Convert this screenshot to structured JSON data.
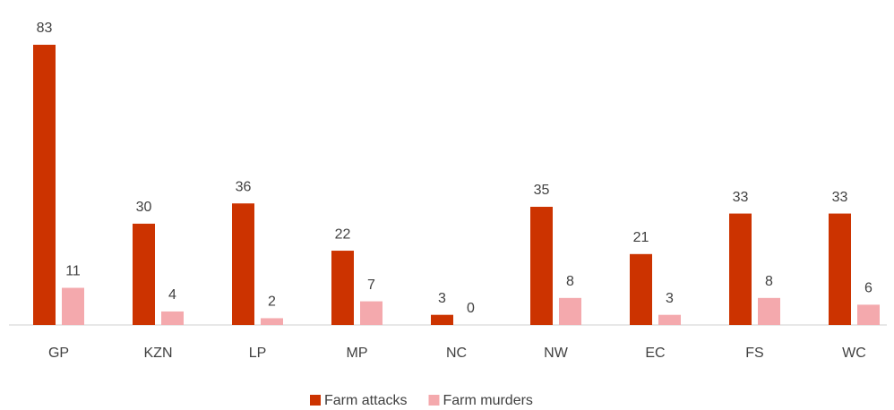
{
  "chart_data": {
    "type": "bar",
    "categories": [
      "GP",
      "KZN",
      "LP",
      "MP",
      "NC",
      "NW",
      "EC",
      "FS",
      "WC"
    ],
    "series": [
      {
        "name": "Farm attacks",
        "color": "#cc3300",
        "values": [
          83,
          30,
          36,
          22,
          3,
          35,
          21,
          33,
          33
        ]
      },
      {
        "name": "Farm murders",
        "color": "#f4a9ad",
        "values": [
          11,
          4,
          2,
          7,
          0,
          8,
          3,
          8,
          6
        ]
      }
    ],
    "legend": "bottom"
  }
}
